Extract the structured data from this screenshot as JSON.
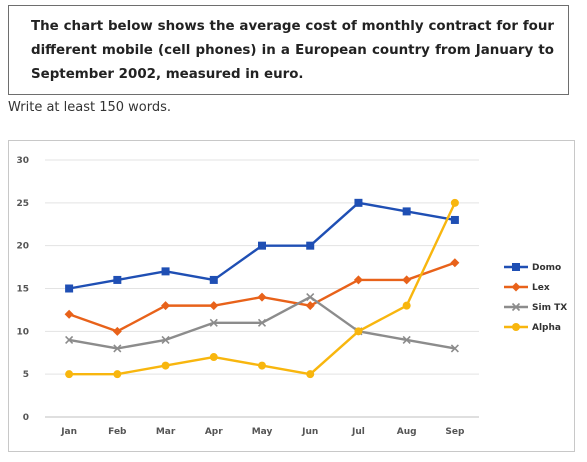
{
  "task": {
    "prompt": "The chart below shows the average cost of monthly contract for four different mobile (cell phones) in a European country from January to September 2002, measured in euro.",
    "instruction": "Write at least 150 words."
  },
  "chart_data": {
    "type": "line",
    "title": "",
    "xlabel": "",
    "ylabel": "",
    "categories": [
      "Jan",
      "Feb",
      "Mar",
      "Apr",
      "May",
      "Jun",
      "Jul",
      "Aug",
      "Sep"
    ],
    "ylim": [
      0,
      30
    ],
    "yticks": [
      0,
      5,
      10,
      15,
      20,
      25,
      30
    ],
    "grid": true,
    "legend_position": "right",
    "series": [
      {
        "name": "Domo",
        "color": "#1f4fb4",
        "marker": "square",
        "values": [
          15,
          16,
          17,
          16,
          20,
          20,
          25,
          24,
          23
        ]
      },
      {
        "name": "Lex",
        "color": "#e8621a",
        "marker": "diamond",
        "values": [
          12,
          10,
          13,
          13,
          14,
          13,
          16,
          16,
          18
        ]
      },
      {
        "name": "Sim TX",
        "color": "#8c8c8c",
        "marker": "x",
        "values": [
          9,
          8,
          9,
          11,
          11,
          14,
          10,
          9,
          8
        ]
      },
      {
        "name": "Alpha",
        "color": "#f8b60e",
        "marker": "circle",
        "values": [
          5,
          5,
          6,
          7,
          6,
          5,
          10,
          13,
          25
        ]
      }
    ]
  }
}
